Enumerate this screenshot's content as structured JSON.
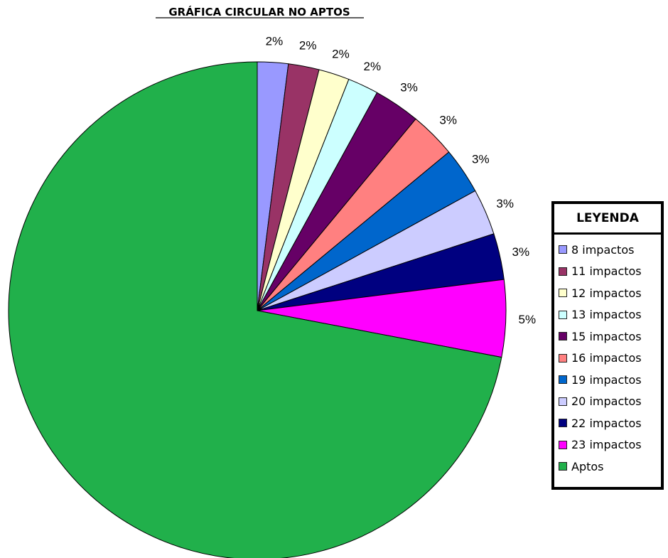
{
  "chart_data": {
    "type": "pie",
    "title": "GRÁFICA CIRCULAR NO APTOS",
    "legend_title": "LEYENDA",
    "legend_position": "right",
    "start": "top",
    "direction": "clockwise",
    "slices": [
      {
        "label": "8 impactos",
        "value": 2,
        "display": "2%",
        "color": "#9999ff"
      },
      {
        "label": "11 impactos",
        "value": 2,
        "display": "2%",
        "color": "#993366"
      },
      {
        "label": "12 impactos",
        "value": 2,
        "display": "2%",
        "color": "#ffffcc"
      },
      {
        "label": "13 impactos",
        "value": 2,
        "display": "2%",
        "color": "#ccffff"
      },
      {
        "label": "15 impactos",
        "value": 3,
        "display": "3%",
        "color": "#660066"
      },
      {
        "label": "16 impactos",
        "value": 3,
        "display": "3%",
        "color": "#ff8080"
      },
      {
        "label": "19 impactos",
        "value": 3,
        "display": "3%",
        "color": "#0066cc"
      },
      {
        "label": "20 impactos",
        "value": 3,
        "display": "3%",
        "color": "#ccccff"
      },
      {
        "label": "22 impactos",
        "value": 3,
        "display": "3%",
        "color": "#000080"
      },
      {
        "label": "23 impactos",
        "value": 5,
        "display": "5%",
        "color": "#ff00ff"
      },
      {
        "label": "Aptos",
        "value": 72,
        "display": "",
        "color": "#21b04b"
      }
    ]
  }
}
